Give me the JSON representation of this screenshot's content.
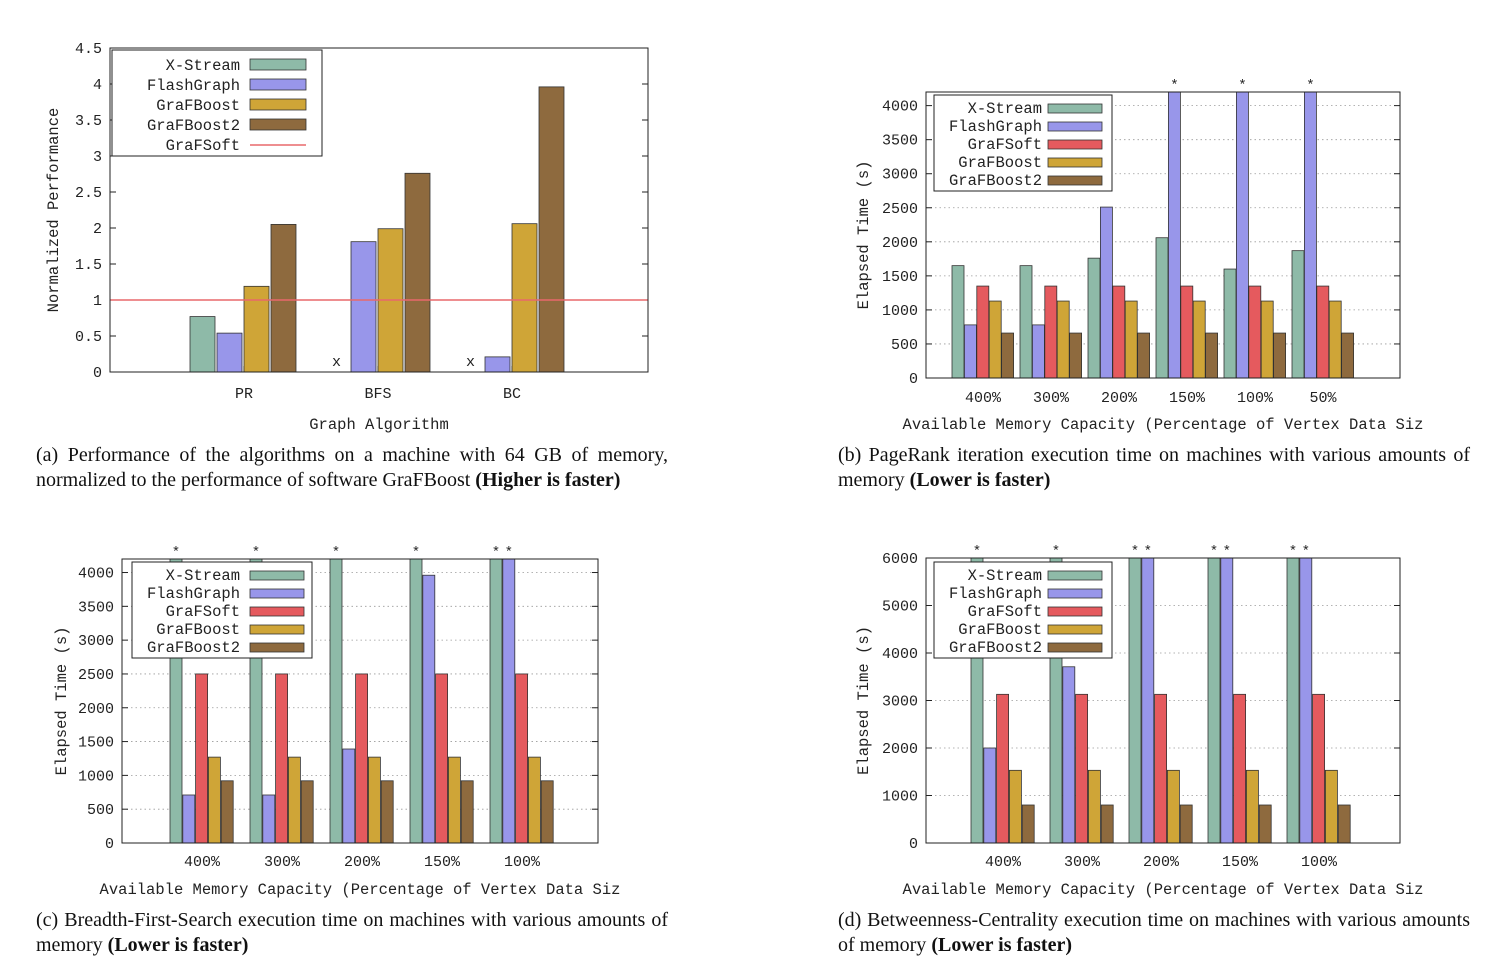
{
  "colors": {
    "xstream": "#8ebaa8",
    "flashgraph": "#9896ea",
    "grafsoft": "#e55a5e",
    "grafboost": "#cfa537",
    "grafboost2": "#8e6a3e",
    "grafsoft_line": "#e8686b"
  },
  "chart_data": [
    {
      "id": "a",
      "type": "bar",
      "xlabel": "Graph Algorithm",
      "ylabel": "Normalized Performance",
      "ylim": [
        0,
        4.5
      ],
      "yticks": [
        "0",
        "0.5",
        "1",
        "1.5",
        "2",
        "2.5",
        "3",
        "3.5",
        "4",
        "4.5"
      ],
      "categories": [
        "PR",
        "BFS",
        "BC"
      ],
      "grid": false,
      "legend_position": "top-left",
      "series": [
        {
          "name": "X-Stream",
          "values": [
            0.77,
            null,
            null
          ],
          "missing_marker": "x"
        },
        {
          "name": "FlashGraph",
          "values": [
            0.54,
            1.81,
            0.21
          ]
        },
        {
          "name": "GraFBoost",
          "values": [
            1.19,
            1.99,
            2.06
          ]
        },
        {
          "name": "GraFBoost2",
          "values": [
            2.05,
            2.76,
            3.96
          ]
        }
      ],
      "reference_line": {
        "name": "GraFSoft",
        "value": 1
      },
      "caption_text": "(a) Performance of the algorithms on a machine with 64 GB of memory, normalized to the performance of software GraFBoost",
      "caption_bold": "(Higher is faster)"
    },
    {
      "id": "b",
      "type": "bar",
      "xlabel": "Available Memory Capacity (Percentage of Vertex Data Siz",
      "ylabel": "Elapsed Time (s)",
      "ylim": [
        0,
        4200
      ],
      "yticks": [
        "0",
        "500",
        "1000",
        "1500",
        "2000",
        "2500",
        "3000",
        "3500",
        "4000"
      ],
      "categories": [
        "400%",
        "300%",
        "200%",
        "150%",
        "100%",
        "50%"
      ],
      "grid": true,
      "legend_position": "top-left",
      "series": [
        {
          "name": "X-Stream",
          "values": [
            1650,
            1650,
            1760,
            2060,
            1600,
            1870
          ]
        },
        {
          "name": "FlashGraph",
          "values": [
            780,
            780,
            2510,
            4200,
            4200,
            4200
          ],
          "overflow": [
            false,
            false,
            false,
            true,
            true,
            true
          ]
        },
        {
          "name": "GraFSoft",
          "values": [
            1350,
            1350,
            1350,
            1350,
            1350,
            1350
          ]
        },
        {
          "name": "GraFBoost",
          "values": [
            1130,
            1130,
            1130,
            1130,
            1130,
            1130
          ]
        },
        {
          "name": "GraFBoost2",
          "values": [
            660,
            660,
            660,
            660,
            660,
            660
          ]
        }
      ],
      "overflow_marker": "*",
      "caption_text": "(b) PageRank iteration execution time on machines with various amounts of memory",
      "caption_bold": "(Lower is faster)"
    },
    {
      "id": "c",
      "type": "bar",
      "xlabel": "Available Memory Capacity (Percentage of Vertex Data Siz",
      "ylabel": "Elapsed Time (s)",
      "ylim": [
        0,
        4200
      ],
      "yticks": [
        "0",
        "500",
        "1000",
        "1500",
        "2000",
        "2500",
        "3000",
        "3500",
        "4000"
      ],
      "categories": [
        "400%",
        "300%",
        "200%",
        "150%",
        "100%"
      ],
      "grid": true,
      "legend_position": "top-left",
      "series": [
        {
          "name": "X-Stream",
          "values": [
            4200,
            4200,
            4200,
            4200,
            4200
          ],
          "overflow": [
            true,
            true,
            true,
            true,
            true
          ]
        },
        {
          "name": "FlashGraph",
          "values": [
            710,
            710,
            1390,
            3960,
            4200
          ],
          "overflow": [
            false,
            false,
            false,
            false,
            true
          ]
        },
        {
          "name": "GraFSoft",
          "values": [
            2500,
            2500,
            2500,
            2500,
            2500
          ]
        },
        {
          "name": "GraFBoost",
          "values": [
            1270,
            1270,
            1270,
            1270,
            1270
          ]
        },
        {
          "name": "GraFBoost2",
          "values": [
            920,
            920,
            920,
            920,
            920
          ]
        }
      ],
      "overflow_marker": "*",
      "caption_text": "(c) Breadth-First-Search execution time on machines with various amounts of memory",
      "caption_bold": "(Lower is faster)"
    },
    {
      "id": "d",
      "type": "bar",
      "xlabel": "Available Memory Capacity (Percentage of Vertex Data Siz",
      "ylabel": "Elapsed Time (s)",
      "ylim": [
        0,
        6000
      ],
      "yticks": [
        "0",
        "1000",
        "2000",
        "3000",
        "4000",
        "5000",
        "6000"
      ],
      "categories": [
        "400%",
        "300%",
        "200%",
        "150%",
        "100%"
      ],
      "grid": true,
      "legend_position": "top-left",
      "series": [
        {
          "name": "X-Stream",
          "values": [
            6000,
            6000,
            6000,
            6000,
            6000
          ],
          "overflow": [
            true,
            true,
            true,
            true,
            true
          ]
        },
        {
          "name": "FlashGraph",
          "values": [
            2000,
            3710,
            6000,
            6000,
            6000
          ],
          "overflow": [
            false,
            false,
            true,
            true,
            true
          ]
        },
        {
          "name": "GraFSoft",
          "values": [
            3130,
            3130,
            3130,
            3130,
            3130
          ]
        },
        {
          "name": "GraFBoost",
          "values": [
            1530,
            1530,
            1530,
            1530,
            1530
          ]
        },
        {
          "name": "GraFBoost2",
          "values": [
            800,
            800,
            800,
            800,
            800
          ]
        }
      ],
      "overflow_marker": "*",
      "caption_text": "(d) Betweenness-Centrality execution time on machines with various amounts of memory",
      "caption_bold": "(Lower is faster)"
    }
  ]
}
